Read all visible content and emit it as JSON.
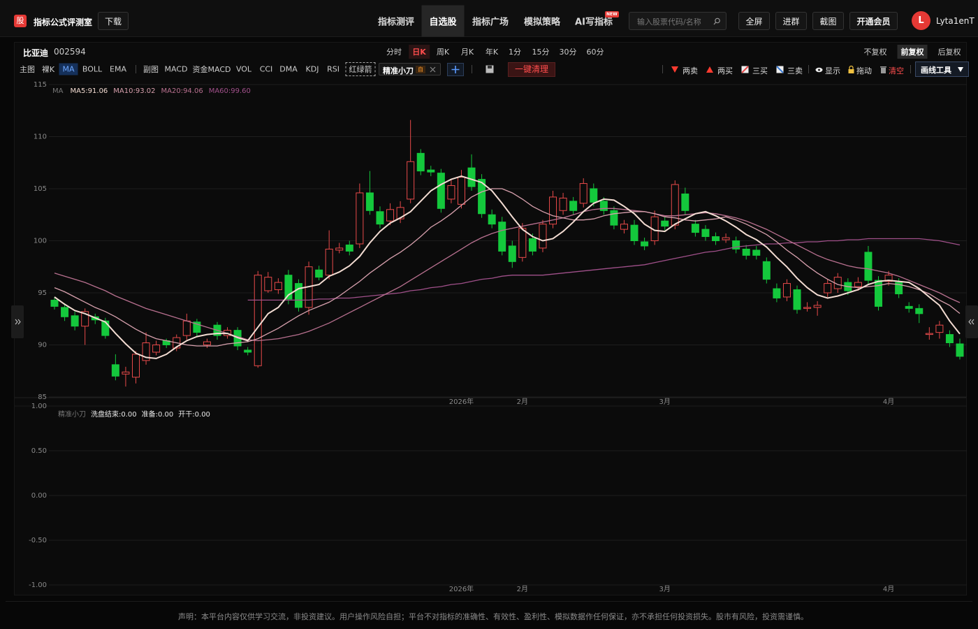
{
  "header": {
    "logo": "股",
    "brand": "指标公式评测室",
    "download": "下载",
    "nav": [
      {
        "label": "指标测评"
      },
      {
        "label": "自选股",
        "active": true
      },
      {
        "label": "指标广场"
      },
      {
        "label": "模拟策略"
      },
      {
        "label": "AI写指标"
      }
    ],
    "new_badge": "NEW",
    "search_placeholder": "输入股票代码/名称",
    "buttons": [
      "全屏",
      "进群",
      "截图",
      "开通会员"
    ],
    "avatar": "L",
    "user": "Lyta1enT"
  },
  "toolbar": {
    "stock_name": "比亚迪",
    "stock_code": "002594",
    "periods": [
      {
        "label": "分时"
      },
      {
        "label": "日K",
        "active": true
      },
      {
        "label": "周K"
      },
      {
        "label": "月K"
      },
      {
        "label": "年K"
      },
      {
        "label": "1分"
      },
      {
        "label": "15分"
      },
      {
        "label": "30分"
      },
      {
        "label": "60分"
      }
    ],
    "adjust": [
      {
        "label": "不复权"
      },
      {
        "label": "前复权",
        "active": true
      },
      {
        "label": "后复权"
      }
    ],
    "main_indicators": [
      {
        "label": "主图"
      },
      {
        "label": "裸K"
      },
      {
        "label": "MA",
        "active": true
      },
      {
        "label": "BOLL"
      },
      {
        "label": "EMA"
      }
    ],
    "sub_indicators": [
      "副图",
      "MACD",
      "资金MACD",
      "VOL",
      "CCI",
      "DMA",
      "KDJ",
      "RSI"
    ],
    "arrow_toggle": "红绿箭",
    "custom_indicator": "精准小刀",
    "custom_badge": "自",
    "clear": "一键清理",
    "signals": [
      "两卖",
      "两买",
      "三买",
      "三卖"
    ],
    "show": "显示",
    "drag": "拖动",
    "clear_drawings": "清空",
    "draw_tools": "画线工具"
  },
  "chart_data": [
    {
      "type": "candlestick",
      "legend_title": "MA",
      "up_color": "#e84a4a",
      "down_color": "#14c83c",
      "grid": true,
      "ylim": [
        85,
        115
      ],
      "yticks": [
        85,
        90,
        95,
        100,
        105,
        110,
        115
      ],
      "categories": [
        null,
        null,
        null,
        null,
        null,
        null,
        null,
        null,
        null,
        null,
        null,
        null,
        null,
        null,
        null,
        null,
        null,
        null,
        null,
        null,
        null,
        null,
        null,
        null,
        null,
        null,
        null,
        null,
        null,
        null,
        null,
        null,
        null,
        null,
        null,
        null,
        null,
        null,
        null,
        null,
        "2026年",
        null,
        null,
        null,
        null,
        null,
        "2月",
        null,
        null,
        null,
        null,
        null,
        null,
        null,
        null,
        null,
        null,
        null,
        null,
        null,
        "3月",
        null,
        null,
        null,
        null,
        null,
        null,
        null,
        null,
        null,
        null,
        null,
        null,
        null,
        null,
        null,
        null,
        null,
        null,
        null,
        null,
        null,
        "4月",
        null,
        null,
        null,
        null,
        null,
        null,
        null
      ],
      "open": [
        94.3,
        93.6,
        92.8,
        91.8,
        92.7,
        92.3,
        88.1,
        87.2,
        86.9,
        88.5,
        89.3,
        90.4,
        89.7,
        90.9,
        92.2,
        90.0,
        91.9,
        90.9,
        91.4,
        89.5,
        88.0,
        95.2,
        95.3,
        96.7,
        95.9,
        93.6,
        97.2,
        96.7,
        99.1,
        99.6,
        99.7,
        104.6,
        102.8,
        101.9,
        102.1,
        104.0,
        108.4,
        106.8,
        106.5,
        104.0,
        103.5,
        107.0,
        105.9,
        102.5,
        101.8,
        99.5,
        98.4,
        100.2,
        99.3,
        101.6,
        102.9,
        103.8,
        103.6,
        105.0,
        103.8,
        102.9,
        101.1,
        101.5,
        99.9,
        100.0,
        101.9,
        101.5,
        104.5,
        101.6,
        101.1,
        100.4,
        100.1,
        100.0,
        99.2,
        99.1,
        98.0,
        95.4,
        94.6,
        95.3,
        93.5,
        93.6,
        95.0,
        95.4,
        96.0,
        95.6,
        98.9,
        96.2,
        96.1,
        96.0,
        93.7,
        93.5,
        91.0,
        91.2,
        91.0,
        90.1
      ],
      "high": [
        94.6,
        94.0,
        93.2,
        93.5,
        93.0,
        92.6,
        89.1,
        87.9,
        89.4,
        91.2,
        90.4,
        90.6,
        91.0,
        93.0,
        92.5,
        90.6,
        92.2,
        91.7,
        91.7,
        89.8,
        97.1,
        97.0,
        96.4,
        97.2,
        96.3,
        98.0,
        97.6,
        101.0,
        99.8,
        100.0,
        105.5,
        106.7,
        103.3,
        103.6,
        103.8,
        111.6,
        108.8,
        107.2,
        106.9,
        105.9,
        106.8,
        108.3,
        106.4,
        103.0,
        102.3,
        100.0,
        101.7,
        100.7,
        102.0,
        104.8,
        104.6,
        104.2,
        106.0,
        105.5,
        104.2,
        103.3,
        102.0,
        102.0,
        100.3,
        102.9,
        102.3,
        105.8,
        105.1,
        102.0,
        101.5,
        100.8,
        100.7,
        100.4,
        99.6,
        99.5,
        98.4,
        95.9,
        96.3,
        95.7,
        94.1,
        94.2,
        96.3,
        96.9,
        96.4,
        96.5,
        99.5,
        96.6,
        97.1,
        96.4,
        94.1,
        93.9,
        91.7,
        92.3,
        91.4,
        90.6
      ],
      "low": [
        93.4,
        92.3,
        91.4,
        90.0,
        92.0,
        90.6,
        86.6,
        86.0,
        86.3,
        88.1,
        89.0,
        89.7,
        89.4,
        90.5,
        90.8,
        89.7,
        90.5,
        90.6,
        89.5,
        89.0,
        87.8,
        95.0,
        94.9,
        93.9,
        93.2,
        92.9,
        96.2,
        96.3,
        98.8,
        98.6,
        99.3,
        102.5,
        101.2,
        101.5,
        101.7,
        103.6,
        106.3,
        106.2,
        102.7,
        103.6,
        103.1,
        104.8,
        102.2,
        101.2,
        98.6,
        97.4,
        98.0,
        98.6,
        98.9,
        101.2,
        102.5,
        102.5,
        103.2,
        103.3,
        102.5,
        101.1,
        100.7,
        99.6,
        99.1,
        99.6,
        101.0,
        101.1,
        102.5,
        100.4,
        100.0,
        99.6,
        99.8,
        98.8,
        98.2,
        98.2,
        95.9,
        94.1,
        94.2,
        93.0,
        93.2,
        92.8,
        94.6,
        95.0,
        94.8,
        95.2,
        95.8,
        93.3,
        95.7,
        94.5,
        93.1,
        92.1,
        90.5,
        90.6,
        89.8,
        88.6
      ],
      "close": [
        93.7,
        92.7,
        91.8,
        93.2,
        92.4,
        90.9,
        87.0,
        87.4,
        89.1,
        90.2,
        90.0,
        90.0,
        90.7,
        92.3,
        91.2,
        90.3,
        90.9,
        91.4,
        89.9,
        89.3,
        96.7,
        96.5,
        96.0,
        94.4,
        93.6,
        97.5,
        96.5,
        99.2,
        99.3,
        99.0,
        104.6,
        102.9,
        101.6,
        103.0,
        103.2,
        107.6,
        106.7,
        106.6,
        103.1,
        105.3,
        106.1,
        105.2,
        102.6,
        101.6,
        99.0,
        98.0,
        101.2,
        99.0,
        101.6,
        104.2,
        104.1,
        102.9,
        105.5,
        103.7,
        102.9,
        101.5,
        101.6,
        100.0,
        99.5,
        102.3,
        101.4,
        105.4,
        102.9,
        100.8,
        100.4,
        100.0,
        100.3,
        99.2,
        98.6,
        98.6,
        96.3,
        94.5,
        95.9,
        93.4,
        93.6,
        93.8,
        95.9,
        96.5,
        95.2,
        96.0,
        96.2,
        93.7,
        96.7,
        94.9,
        93.5,
        93.0,
        91.1,
        91.9,
        90.2,
        88.9
      ],
      "series": [
        {
          "name": "MA5:91.06",
          "color": "#f3dcd2",
          "values": [
            94.6,
            93.9,
            93.3,
            93.0,
            92.6,
            92.2,
            91.1,
            90.1,
            89.2,
            88.8,
            88.7,
            89.1,
            89.8,
            90.4,
            90.8,
            91.0,
            91.1,
            91.1,
            90.7,
            90.4,
            91.7,
            93.0,
            93.6,
            94.8,
            95.4,
            95.6,
            95.8,
            96.6,
            97.0,
            97.6,
            98.5,
            99.8,
            100.9,
            101.7,
            102.2,
            102.8,
            103.8,
            104.8,
            105.4,
            105.9,
            106.2,
            105.9,
            105.6,
            104.8,
            103.6,
            102.3,
            101.1,
            100.4,
            100.0,
            100.2,
            100.9,
            101.8,
            102.8,
            103.6,
            104.0,
            103.9,
            103.3,
            102.6,
            101.6,
            101.0,
            100.9,
            101.6,
            102.1,
            102.6,
            102.8,
            102.4,
            101.9,
            101.3,
            100.6,
            100.1,
            99.4,
            98.4,
            97.5,
            96.4,
            95.5,
            94.8,
            94.5,
            94.7,
            95.0,
            95.3,
            95.8,
            96.1,
            96.2,
            96.1,
            96.0,
            95.4,
            94.6,
            93.8,
            92.3,
            91.06
          ]
        },
        {
          "name": "MA10:93.02",
          "color": "#d7a0ad",
          "values": [
            95.5,
            95.1,
            94.6,
            94.1,
            93.6,
            93.2,
            92.7,
            92.1,
            91.5,
            91.0,
            90.6,
            90.4,
            90.2,
            90.0,
            89.9,
            89.9,
            89.9,
            90.1,
            90.2,
            90.3,
            90.6,
            91.1,
            91.6,
            92.2,
            92.8,
            93.3,
            93.7,
            94.1,
            94.7,
            95.4,
            96.1,
            96.9,
            97.6,
            98.3,
            98.9,
            99.6,
            100.4,
            101.3,
            101.9,
            102.6,
            103.4,
            104.2,
            104.7,
            105.0,
            105.0,
            104.6,
            104.0,
            103.3,
            102.8,
            102.4,
            102.2,
            102.0,
            102.0,
            102.1,
            102.4,
            102.6,
            102.7,
            102.8,
            102.8,
            102.6,
            102.3,
            102.2,
            102.0,
            101.9,
            102.0,
            102.1,
            102.3,
            102.0,
            101.6,
            101.1,
            100.6,
            99.9,
            99.1,
            98.4,
            97.6,
            96.9,
            96.3,
            95.8,
            95.6,
            95.5,
            95.6,
            95.7,
            95.9,
            95.8,
            95.6,
            95.3,
            94.9,
            94.3,
            93.8,
            93.02
          ]
        },
        {
          "name": "MA20:94.06",
          "color": "#b8708f",
          "values": [
            96.9,
            96.6,
            96.3,
            96.0,
            95.6,
            95.2,
            94.7,
            94.3,
            93.9,
            93.5,
            93.2,
            92.9,
            92.6,
            92.3,
            92.0,
            91.7,
            91.4,
            91.1,
            90.8,
            90.5,
            90.4,
            90.5,
            90.6,
            90.8,
            91.0,
            91.3,
            91.7,
            92.1,
            92.6,
            93.1,
            93.6,
            94.1,
            94.6,
            95.1,
            95.6,
            96.2,
            96.8,
            97.4,
            98.0,
            98.6,
            99.2,
            99.8,
            100.3,
            100.7,
            101.0,
            101.2,
            101.4,
            101.6,
            101.8,
            102.0,
            102.2,
            102.5,
            102.8,
            103.0,
            103.1,
            103.1,
            103.0,
            102.9,
            102.8,
            102.6,
            102.4,
            102.4,
            102.5,
            102.6,
            102.7,
            102.6,
            102.4,
            102.2,
            101.9,
            101.5,
            101.1,
            100.6,
            100.1,
            99.6,
            99.1,
            98.6,
            98.2,
            97.9,
            97.6,
            97.4,
            97.3,
            97.1,
            96.9,
            96.6,
            96.2,
            95.8,
            95.4,
            95.0,
            94.5,
            94.06
          ]
        },
        {
          "name": "MA60:99.60",
          "color": "#a0508a",
          "values": [
            null,
            null,
            null,
            null,
            null,
            null,
            null,
            null,
            null,
            null,
            null,
            null,
            null,
            null,
            null,
            null,
            null,
            null,
            null,
            94.3,
            94.3,
            94.3,
            94.3,
            94.3,
            94.3,
            94.3,
            94.4,
            94.4,
            94.5,
            94.5,
            94.6,
            94.7,
            94.8,
            94.9,
            95.0,
            95.2,
            95.3,
            95.5,
            95.6,
            95.8,
            95.9,
            96.1,
            96.3,
            96.4,
            96.6,
            96.7,
            96.7,
            96.7,
            96.7,
            96.8,
            96.9,
            97.0,
            97.1,
            97.2,
            97.3,
            97.4,
            97.5,
            97.6,
            97.7,
            97.9,
            98.1,
            98.3,
            98.5,
            98.7,
            98.9,
            99.0,
            99.2,
            99.4,
            99.5,
            99.6,
            99.7,
            99.7,
            99.8,
            99.8,
            99.9,
            99.9,
            100.0,
            100.0,
            100.1,
            100.1,
            100.2,
            100.2,
            100.2,
            100.2,
            100.2,
            100.2,
            100.1,
            100.0,
            99.8,
            99.6
          ]
        }
      ]
    },
    {
      "type": "line",
      "legend_title": "精准小刀",
      "legend": [
        "洗盘结束:0.00",
        "准备:0.00",
        "开干:0.00"
      ],
      "grid": true,
      "ylim": [
        -1,
        1
      ],
      "yticks": [
        {
          "value": 1,
          "label": "1.00"
        },
        {
          "value": 0.5,
          "label": "0.50"
        },
        {
          "value": 0,
          "label": "0.00"
        },
        {
          "value": -0.5,
          "label": "-0.50"
        },
        {
          "value": -1,
          "label": "-1.00"
        }
      ],
      "categories": [
        null,
        null,
        null,
        null,
        null,
        null,
        null,
        null,
        null,
        null,
        null,
        null,
        null,
        null,
        null,
        null,
        null,
        null,
        null,
        null,
        null,
        null,
        null,
        null,
        null,
        null,
        null,
        null,
        null,
        null,
        null,
        null,
        null,
        null,
        null,
        null,
        null,
        null,
        null,
        null,
        "2026年",
        null,
        null,
        null,
        null,
        null,
        "2月",
        null,
        null,
        null,
        null,
        null,
        null,
        null,
        null,
        null,
        null,
        null,
        null,
        null,
        "3月",
        null,
        null,
        null,
        null,
        null,
        null,
        null,
        null,
        null,
        null,
        null,
        null,
        null,
        null,
        null,
        null,
        null,
        null,
        null,
        null,
        null,
        "4月",
        null,
        null,
        null,
        null,
        null,
        null,
        null
      ]
    }
  ],
  "footer": "声明：本平台内容仅供学习交流，非投资建议。用户操作风险自担；平台不对指标的准确性、有效性、盈利性、模拟数据作任何保证，亦不承担任何投资损失。股市有风险，投资需谨慎。"
}
